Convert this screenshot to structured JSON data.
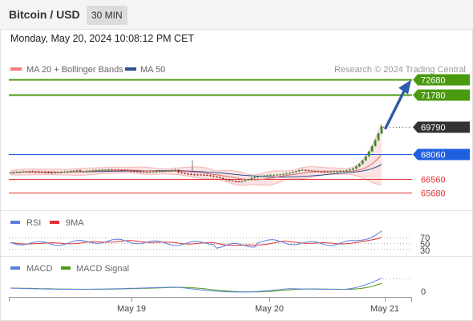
{
  "header": {
    "title": "Bitcoin / USD",
    "interval": "30 MIN",
    "datetime": "Monday, May 20, 2024 10:08:12 PM CET"
  },
  "chart_data": {
    "type": "candlestick",
    "credit": "Research © 2024 Trading Central",
    "legend": [
      {
        "name": "MA 20 + Bollinger Bands",
        "color": "#f28080"
      },
      {
        "name": "MA 50",
        "color": "#2f4f8f"
      }
    ],
    "y_range": [
      64800,
      73300
    ],
    "levels": [
      {
        "value": 72680,
        "label": "72680",
        "color": "#4a9a10",
        "style": "resistance"
      },
      {
        "value": 71780,
        "label": "71780",
        "color": "#4a9a10",
        "style": "resistance"
      },
      {
        "value": 69790,
        "label": "69790",
        "color": "#333333",
        "style": "last"
      },
      {
        "value": 68060,
        "label": "68060",
        "color": "#1f5fe0",
        "style": "pivot"
      },
      {
        "value": 66560,
        "label": "66560",
        "color": "#e03030",
        "style": "support"
      },
      {
        "value": 65680,
        "label": "65680",
        "color": "#e03030",
        "style": "support"
      }
    ],
    "arrow": {
      "from": 69790,
      "to": 72680,
      "color": "#2f5ea8"
    },
    "rsi": {
      "legend": [
        {
          "name": "RSI",
          "color": "#5b7fe0"
        },
        {
          "name": "9MA",
          "color": "#e03030"
        }
      ],
      "levels": [
        "70",
        "50",
        "30"
      ]
    },
    "macd": {
      "legend": [
        {
          "name": "MACD",
          "color": "#5b7fe0"
        },
        {
          "name": "MACD Signal",
          "color": "#4a9a10"
        }
      ],
      "levels": [
        "0"
      ]
    },
    "x_ticks": [
      "May 19",
      "May 20",
      "May 21"
    ]
  }
}
